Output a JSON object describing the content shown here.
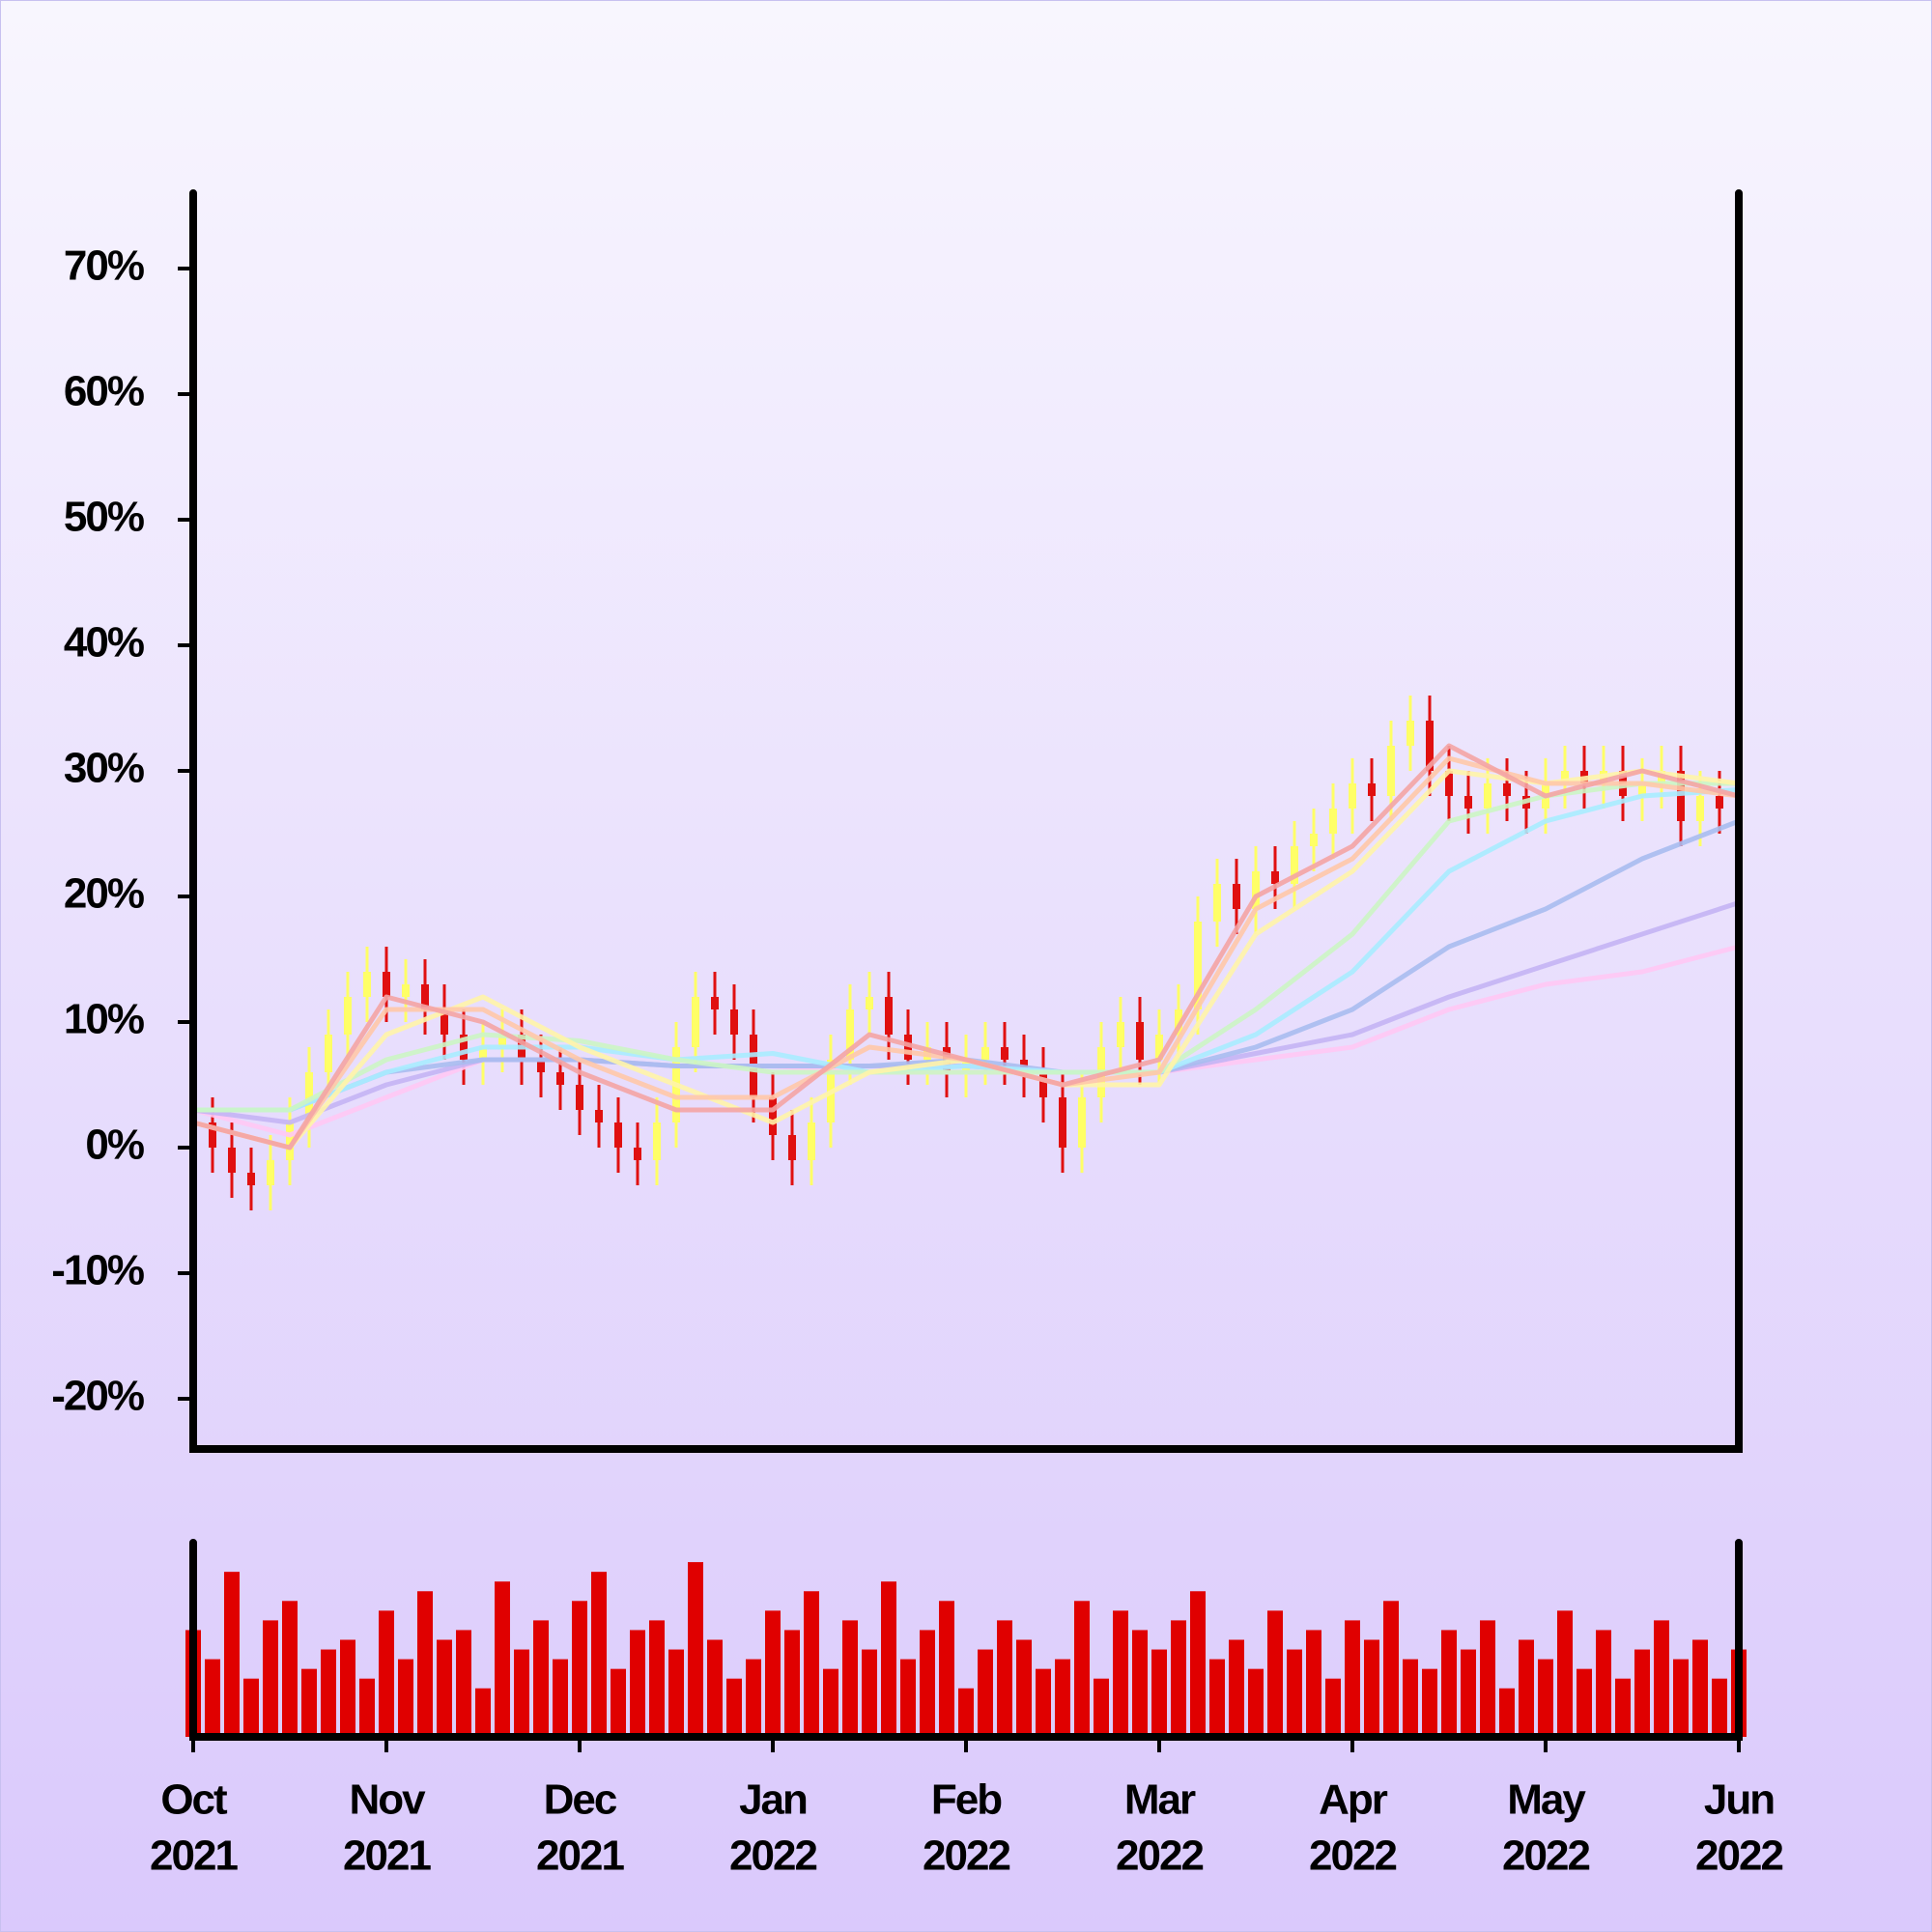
{
  "chart_data": {
    "type": "ohlc",
    "x": [
      0,
      0.1,
      0.2,
      0.3,
      0.4,
      0.5,
      0.6,
      0.7,
      0.8,
      0.9,
      1,
      1.1,
      1.2,
      1.3,
      1.4,
      1.5,
      1.6,
      1.7,
      1.8,
      1.9,
      2,
      2.1,
      2.2,
      2.3,
      2.4,
      2.5,
      2.6,
      2.7,
      2.8,
      2.9,
      3,
      3.1,
      3.2,
      3.3,
      3.4,
      3.5,
      3.6,
      3.7,
      3.8,
      3.9,
      4,
      4.1,
      4.2,
      4.3,
      4.4,
      4.5,
      4.6,
      4.7,
      4.8,
      4.9,
      5,
      5.1,
      5.2,
      5.3,
      5.4,
      5.5,
      5.6,
      5.7,
      5.8,
      5.9,
      6,
      6.1,
      6.2,
      6.3,
      6.4,
      6.5,
      6.6,
      6.7,
      6.8,
      6.9,
      7,
      7.1,
      7.2,
      7.3,
      7.4,
      7.5,
      7.6,
      7.7,
      7.8,
      7.9,
      8
    ],
    "open": [
      3,
      2,
      0,
      -2,
      -3,
      -1,
      2,
      6,
      9,
      12,
      14,
      12,
      13,
      11,
      9,
      7,
      8,
      9,
      7,
      6,
      5,
      3,
      2,
      0,
      -1,
      2,
      8,
      12,
      11,
      9,
      4,
      1,
      -1,
      2,
      7,
      11,
      12,
      9,
      7,
      8,
      6,
      7,
      8,
      7,
      6,
      4,
      0,
      4,
      8,
      10,
      7,
      9,
      11,
      18,
      21,
      19,
      22,
      21,
      24,
      25,
      27,
      29,
      28,
      32,
      34,
      30,
      28,
      27,
      29,
      28,
      27,
      29,
      30,
      29,
      30,
      28,
      29,
      30,
      26,
      28,
      27
    ],
    "high": [
      5,
      4,
      2,
      0,
      1,
      4,
      8,
      11,
      14,
      16,
      16,
      15,
      15,
      13,
      11,
      10,
      11,
      11,
      9,
      8,
      7,
      5,
      4,
      2,
      4,
      10,
      14,
      14,
      13,
      11,
      6,
      3,
      4,
      9,
      13,
      14,
      14,
      11,
      10,
      10,
      9,
      10,
      10,
      9,
      8,
      6,
      6,
      10,
      12,
      12,
      11,
      13,
      20,
      23,
      23,
      24,
      24,
      26,
      27,
      29,
      31,
      31,
      34,
      36,
      36,
      32,
      30,
      31,
      31,
      30,
      31,
      32,
      32,
      32,
      32,
      31,
      32,
      32,
      30,
      30,
      30
    ],
    "low": [
      0,
      -2,
      -4,
      -5,
      -5,
      -3,
      0,
      4,
      7,
      10,
      10,
      10,
      9,
      7,
      5,
      5,
      6,
      5,
      4,
      3,
      1,
      0,
      -2,
      -3,
      -3,
      0,
      6,
      9,
      7,
      2,
      -1,
      -3,
      -3,
      0,
      5,
      9,
      7,
      5,
      5,
      4,
      4,
      5,
      5,
      4,
      2,
      -2,
      -2,
      2,
      6,
      5,
      5,
      7,
      9,
      16,
      17,
      17,
      19,
      19,
      22,
      23,
      25,
      26,
      26,
      30,
      28,
      26,
      25,
      25,
      26,
      25,
      25,
      27,
      27,
      27,
      26,
      26,
      27,
      24,
      24,
      25,
      25
    ],
    "close": [
      2,
      0,
      -2,
      -3,
      -1,
      2,
      6,
      9,
      12,
      14,
      12,
      13,
      11,
      9,
      7,
      8,
      9,
      7,
      6,
      5,
      3,
      2,
      0,
      -1,
      2,
      8,
      12,
      11,
      9,
      4,
      1,
      -1,
      2,
      7,
      11,
      12,
      9,
      7,
      8,
      6,
      7,
      8,
      7,
      6,
      4,
      0,
      4,
      8,
      10,
      7,
      9,
      11,
      18,
      21,
      19,
      22,
      21,
      24,
      25,
      27,
      29,
      28,
      32,
      34,
      30,
      28,
      27,
      29,
      28,
      27,
      29,
      30,
      29,
      30,
      28,
      29,
      30,
      26,
      28,
      27,
      28
    ],
    "up_color": "#ffff66",
    "down_color": "#e01010",
    "ylim": [
      -24,
      76
    ],
    "yticks": [
      {
        "value": -20,
        "label": "-20%"
      },
      {
        "value": -10,
        "label": "-10%"
      },
      {
        "value": 0,
        "label": "0%"
      },
      {
        "value": 10,
        "label": "10%"
      },
      {
        "value": 20,
        "label": "20%"
      },
      {
        "value": 30,
        "label": "30%"
      },
      {
        "value": 40,
        "label": "40%"
      },
      {
        "value": 50,
        "label": "50%"
      },
      {
        "value": 60,
        "label": "60%"
      },
      {
        "value": 70,
        "label": "70%"
      }
    ],
    "xlim": [
      0,
      8
    ],
    "xticks": [
      {
        "value": 0,
        "label": [
          "Oct",
          "2021"
        ]
      },
      {
        "value": 1,
        "label": [
          "Nov",
          "2021"
        ]
      },
      {
        "value": 2,
        "label": [
          "Dec",
          "2021"
        ]
      },
      {
        "value": 3,
        "label": [
          "Jan",
          "2022"
        ]
      },
      {
        "value": 4,
        "label": [
          "Feb",
          "2022"
        ]
      },
      {
        "value": 5,
        "label": [
          "Mar",
          "2022"
        ]
      },
      {
        "value": 6,
        "label": [
          "Apr",
          "2022"
        ]
      },
      {
        "value": 7,
        "label": [
          "May",
          "2022"
        ]
      },
      {
        "value": 8,
        "label": [
          "Jun",
          "2022"
        ]
      }
    ],
    "moving_averages": {
      "x": [
        0,
        0.5,
        1,
        1.5,
        2,
        2.5,
        3,
        3.5,
        4,
        4.5,
        5,
        5.5,
        6,
        6.5,
        7,
        7.5,
        8
      ],
      "series": [
        {
          "color": "#ffc8f4",
          "values": [
            3,
            1,
            4,
            7,
            7,
            6.5,
            6.5,
            6,
            6,
            6,
            6,
            7,
            8,
            11,
            13,
            14,
            16
          ]
        },
        {
          "color": "#c4b4f4",
          "values": [
            3,
            2,
            5,
            7,
            7,
            6.5,
            6.5,
            6.5,
            6.5,
            6,
            6,
            7.5,
            9,
            12,
            14.5,
            17,
            19.5
          ]
        },
        {
          "color": "#a8bcf0",
          "values": [
            3,
            3,
            6,
            7,
            7,
            6.5,
            6.5,
            6.5,
            7,
            6,
            6,
            8,
            11,
            16,
            19,
            23,
            26
          ]
        },
        {
          "color": "#a8ecff",
          "values": [
            3,
            3,
            6,
            8,
            8,
            7,
            7.5,
            6,
            6.5,
            6,
            6,
            9,
            14,
            22,
            26,
            28,
            28.5
          ]
        },
        {
          "color": "#ccf5c4",
          "values": [
            3,
            3,
            7,
            9,
            8.5,
            7,
            6,
            6,
            6,
            6,
            6,
            11,
            17,
            26,
            28,
            29,
            29
          ]
        },
        {
          "color": "#fff4a8",
          "values": [
            2,
            0,
            9,
            12,
            8,
            5,
            2,
            6,
            7,
            5,
            5,
            17,
            22,
            30,
            29,
            30,
            29
          ]
        },
        {
          "color": "#ffc8a8",
          "values": [
            2,
            0,
            11,
            11,
            7,
            4,
            4,
            8,
            7,
            5,
            6,
            19,
            23,
            31,
            29,
            29,
            28
          ]
        },
        {
          "color": "#f4a4a4",
          "values": [
            2,
            0,
            12,
            10,
            6,
            3,
            3,
            9,
            7,
            5,
            7,
            20,
            24,
            32,
            28,
            30,
            28
          ]
        }
      ]
    },
    "volume": {
      "color": "#e00000",
      "ylim": [
        0,
        100
      ],
      "values": [
        55,
        40,
        85,
        30,
        60,
        70,
        35,
        45,
        50,
        30,
        65,
        40,
        75,
        50,
        55,
        25,
        80,
        45,
        60,
        40,
        70,
        85,
        35,
        55,
        60,
        45,
        90,
        50,
        30,
        40,
        65,
        55,
        75,
        35,
        60,
        45,
        80,
        40,
        55,
        70,
        25,
        45,
        60,
        50,
        35,
        40,
        70,
        30,
        65,
        55,
        45,
        60,
        75,
        40,
        50,
        35,
        65,
        45,
        55,
        30,
        60,
        50,
        70,
        40,
        35,
        55,
        45,
        60,
        25,
        50,
        40,
        65,
        35,
        55,
        30,
        45,
        60,
        40,
        50,
        30,
        45
      ]
    }
  }
}
